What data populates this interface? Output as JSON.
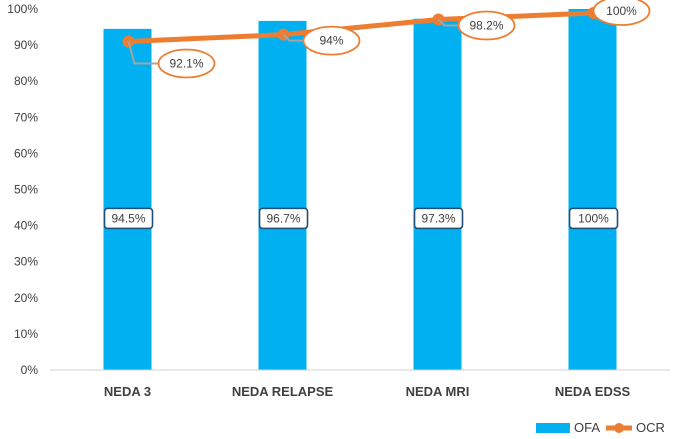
{
  "chart_data": {
    "type": "bar",
    "categories": [
      "NEDA 3",
      "NEDA RELAPSE",
      "NEDA MRI",
      "NEDA EDSS"
    ],
    "series": [
      {
        "name": "OFA",
        "kind": "bar",
        "color": "#00B0F0",
        "values": [
          94.5,
          96.7,
          97.3,
          100
        ],
        "labels": [
          "94.5%",
          "96.7%",
          "97.3%",
          "100%"
        ]
      },
      {
        "name": "OCR",
        "kind": "line",
        "color": "#ED7D31",
        "values": [
          92.1,
          94,
          98.2,
          100
        ],
        "labels": [
          "92.1%",
          "94%",
          "98.2%",
          "100%"
        ]
      }
    ],
    "y_ticks": [
      "0%",
      "10%",
      "20%",
      "30%",
      "40%",
      "50%",
      "60%",
      "70%",
      "80%",
      "90%",
      "100%"
    ],
    "ylim": [
      0,
      100
    ],
    "grid": false,
    "legend_position": "bottom-right"
  }
}
